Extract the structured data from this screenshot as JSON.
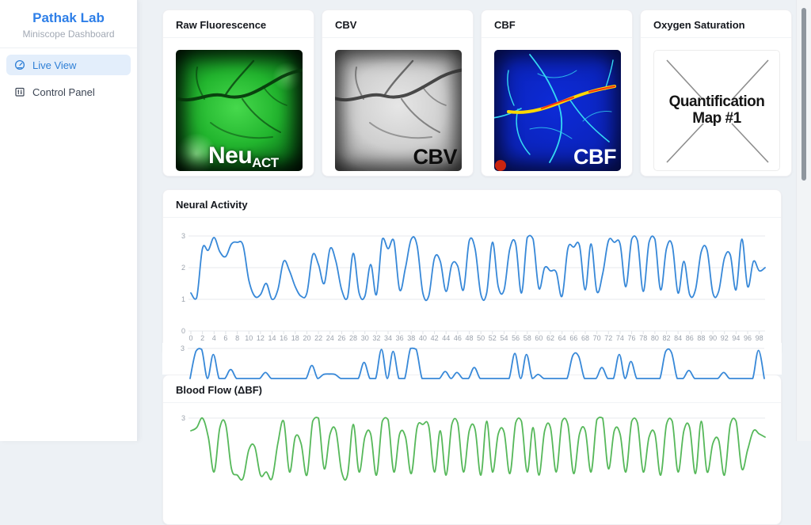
{
  "accent_colors": {
    "brand_blue": "#2e7fe8",
    "active_item_bg": "#e3eefb",
    "line_blue": "#3788d8",
    "line_green": "#56b85a"
  },
  "sidebar": {
    "title": "Pathak Lab",
    "subtitle": "Miniscope Dashboard",
    "items": [
      {
        "label": "Live View",
        "icon": "gauge-icon",
        "active": true
      },
      {
        "label": "Control Panel",
        "icon": "control-panel-icon",
        "active": false
      }
    ]
  },
  "cards": [
    {
      "title": "Raw Fluorescence",
      "image": {
        "kind": "green-fluorescence-brain",
        "label_main": "Neu",
        "label_sub": "ACT"
      }
    },
    {
      "title": "CBV",
      "image": {
        "kind": "grayscale-brain",
        "label": "CBV"
      }
    },
    {
      "title": "CBF",
      "image": {
        "kind": "blue-flow-map",
        "label": "CBF"
      }
    },
    {
      "title": "Oxygen Saturation",
      "image": {
        "kind": "missing-image-placeholder",
        "label": "Quantification Map #1"
      }
    }
  ],
  "chart_data": [
    {
      "type": "line",
      "title": "Neural Activity",
      "xlabel": "",
      "ylabel": "",
      "ylim": [
        0,
        3
      ],
      "y_ticks": [
        3,
        2,
        1,
        0
      ],
      "x_tick_labels": [
        0,
        2,
        4,
        6,
        8,
        10,
        12,
        14,
        16,
        18,
        20,
        22,
        24,
        26,
        28,
        30,
        32,
        34,
        36,
        38,
        40,
        42,
        44,
        46,
        48,
        50,
        52,
        54,
        56,
        58,
        60,
        62,
        64,
        66,
        68,
        70,
        72,
        74,
        76,
        78,
        80,
        82,
        84,
        86,
        88,
        90,
        92,
        94,
        96,
        98
      ],
      "grid": true,
      "legend": false,
      "series": [
        {
          "name": "neural-activity",
          "color": "#3788d8",
          "values": [
            1.2,
            1.05,
            2.6,
            2.55,
            2.95,
            2.5,
            2.35,
            2.75,
            2.8,
            2.7,
            1.6,
            1.1,
            1.15,
            1.5,
            1.0,
            1.3,
            2.2,
            1.9,
            1.4,
            1.1,
            1.2,
            2.4,
            2.1,
            1.5,
            2.6,
            2.2,
            1.3,
            1.05,
            2.45,
            1.2,
            1.1,
            2.1,
            1.15,
            2.9,
            2.6,
            2.85,
            1.3,
            2.0,
            2.9,
            2.7,
            1.2,
            1.1,
            2.3,
            2.2,
            1.25,
            2.1,
            2.05,
            1.3,
            2.85,
            2.6,
            1.15,
            1.2,
            2.8,
            1.4,
            1.3,
            2.6,
            2.75,
            1.2,
            2.95,
            2.9,
            1.35,
            2.0,
            1.9,
            1.85,
            1.1,
            2.6,
            2.65,
            2.7,
            1.3,
            2.75,
            1.25,
            1.8,
            2.85,
            2.8,
            2.75,
            1.4,
            2.9,
            2.85,
            1.25,
            2.8,
            2.9,
            1.3,
            2.6,
            2.7,
            1.2,
            2.2,
            1.15,
            1.3,
            2.5,
            2.55,
            1.2,
            1.25,
            2.3,
            2.4,
            1.3,
            2.9,
            1.4,
            2.2,
            1.9,
            2.0
          ]
        }
      ]
    },
    {
      "type": "line",
      "title": "",
      "ylim": [
        0,
        3
      ],
      "y_ticks": [
        3
      ],
      "grid": true,
      "legend": false,
      "series": [
        {
          "name": "neural-spikes",
          "color": "#3788d8",
          "values": [
            0,
            2.7,
            2.9,
            0,
            2.4,
            0,
            0,
            0.9,
            0,
            0,
            0,
            0,
            0,
            0.6,
            0,
            0,
            0,
            0,
            0,
            0,
            0,
            1.3,
            0,
            0.4,
            0.45,
            0.4,
            0,
            0,
            0,
            0,
            1.6,
            0,
            0,
            2.9,
            0,
            2.7,
            0,
            0,
            3.0,
            2.9,
            0,
            0,
            0,
            0,
            0.7,
            0,
            0.6,
            0,
            0,
            1.1,
            0,
            0,
            0,
            0,
            0,
            0,
            2.5,
            0,
            2.4,
            0,
            0.4,
            0,
            0,
            0,
            0,
            0,
            2.3,
            2.2,
            0,
            0,
            0,
            1.1,
            0,
            0,
            2.4,
            0,
            1.7,
            0,
            0,
            0,
            0,
            0,
            2.7,
            2.6,
            0,
            0,
            0.8,
            0,
            0,
            0,
            0,
            0,
            0.6,
            0,
            0,
            0,
            0,
            0,
            2.8,
            0
          ]
        }
      ]
    },
    {
      "type": "line",
      "title": "Blood Flow (ΔBF)",
      "ylim": [
        0,
        3
      ],
      "y_ticks": [
        3
      ],
      "grid": true,
      "legend": false,
      "series": [
        {
          "name": "blood-flow",
          "color": "#56b85a",
          "values": [
            2.6,
            2.7,
            3.0,
            2.4,
            1.3,
            2.7,
            2.8,
            1.4,
            1.2,
            1.1,
            2.0,
            2.1,
            1.2,
            1.3,
            1.1,
            2.2,
            2.9,
            1.3,
            2.4,
            2.2,
            1.2,
            2.9,
            3.0,
            1.4,
            2.5,
            2.6,
            1.3,
            1.2,
            2.8,
            1.3,
            2.4,
            2.5,
            1.2,
            2.9,
            2.95,
            1.3,
            2.5,
            2.4,
            1.25,
            2.7,
            2.8,
            2.75,
            1.3,
            2.6,
            1.2,
            2.8,
            2.85,
            1.3,
            2.6,
            2.65,
            1.2,
            2.9,
            1.3,
            2.5,
            2.55,
            1.25,
            2.85,
            2.9,
            1.3,
            2.7,
            1.2,
            2.6,
            2.7,
            1.3,
            2.9,
            2.8,
            1.25,
            2.5,
            2.6,
            1.3,
            2.95,
            3.0,
            1.4,
            2.6,
            2.5,
            1.3,
            2.9,
            2.85,
            1.3,
            2.4,
            2.5,
            1.2,
            2.8,
            2.9,
            1.3,
            2.6,
            2.7,
            1.25,
            2.9,
            1.3,
            2.2,
            2.3,
            1.2,
            2.8,
            2.9,
            1.4,
            2.0,
            2.6,
            2.5,
            2.4
          ]
        }
      ]
    }
  ]
}
